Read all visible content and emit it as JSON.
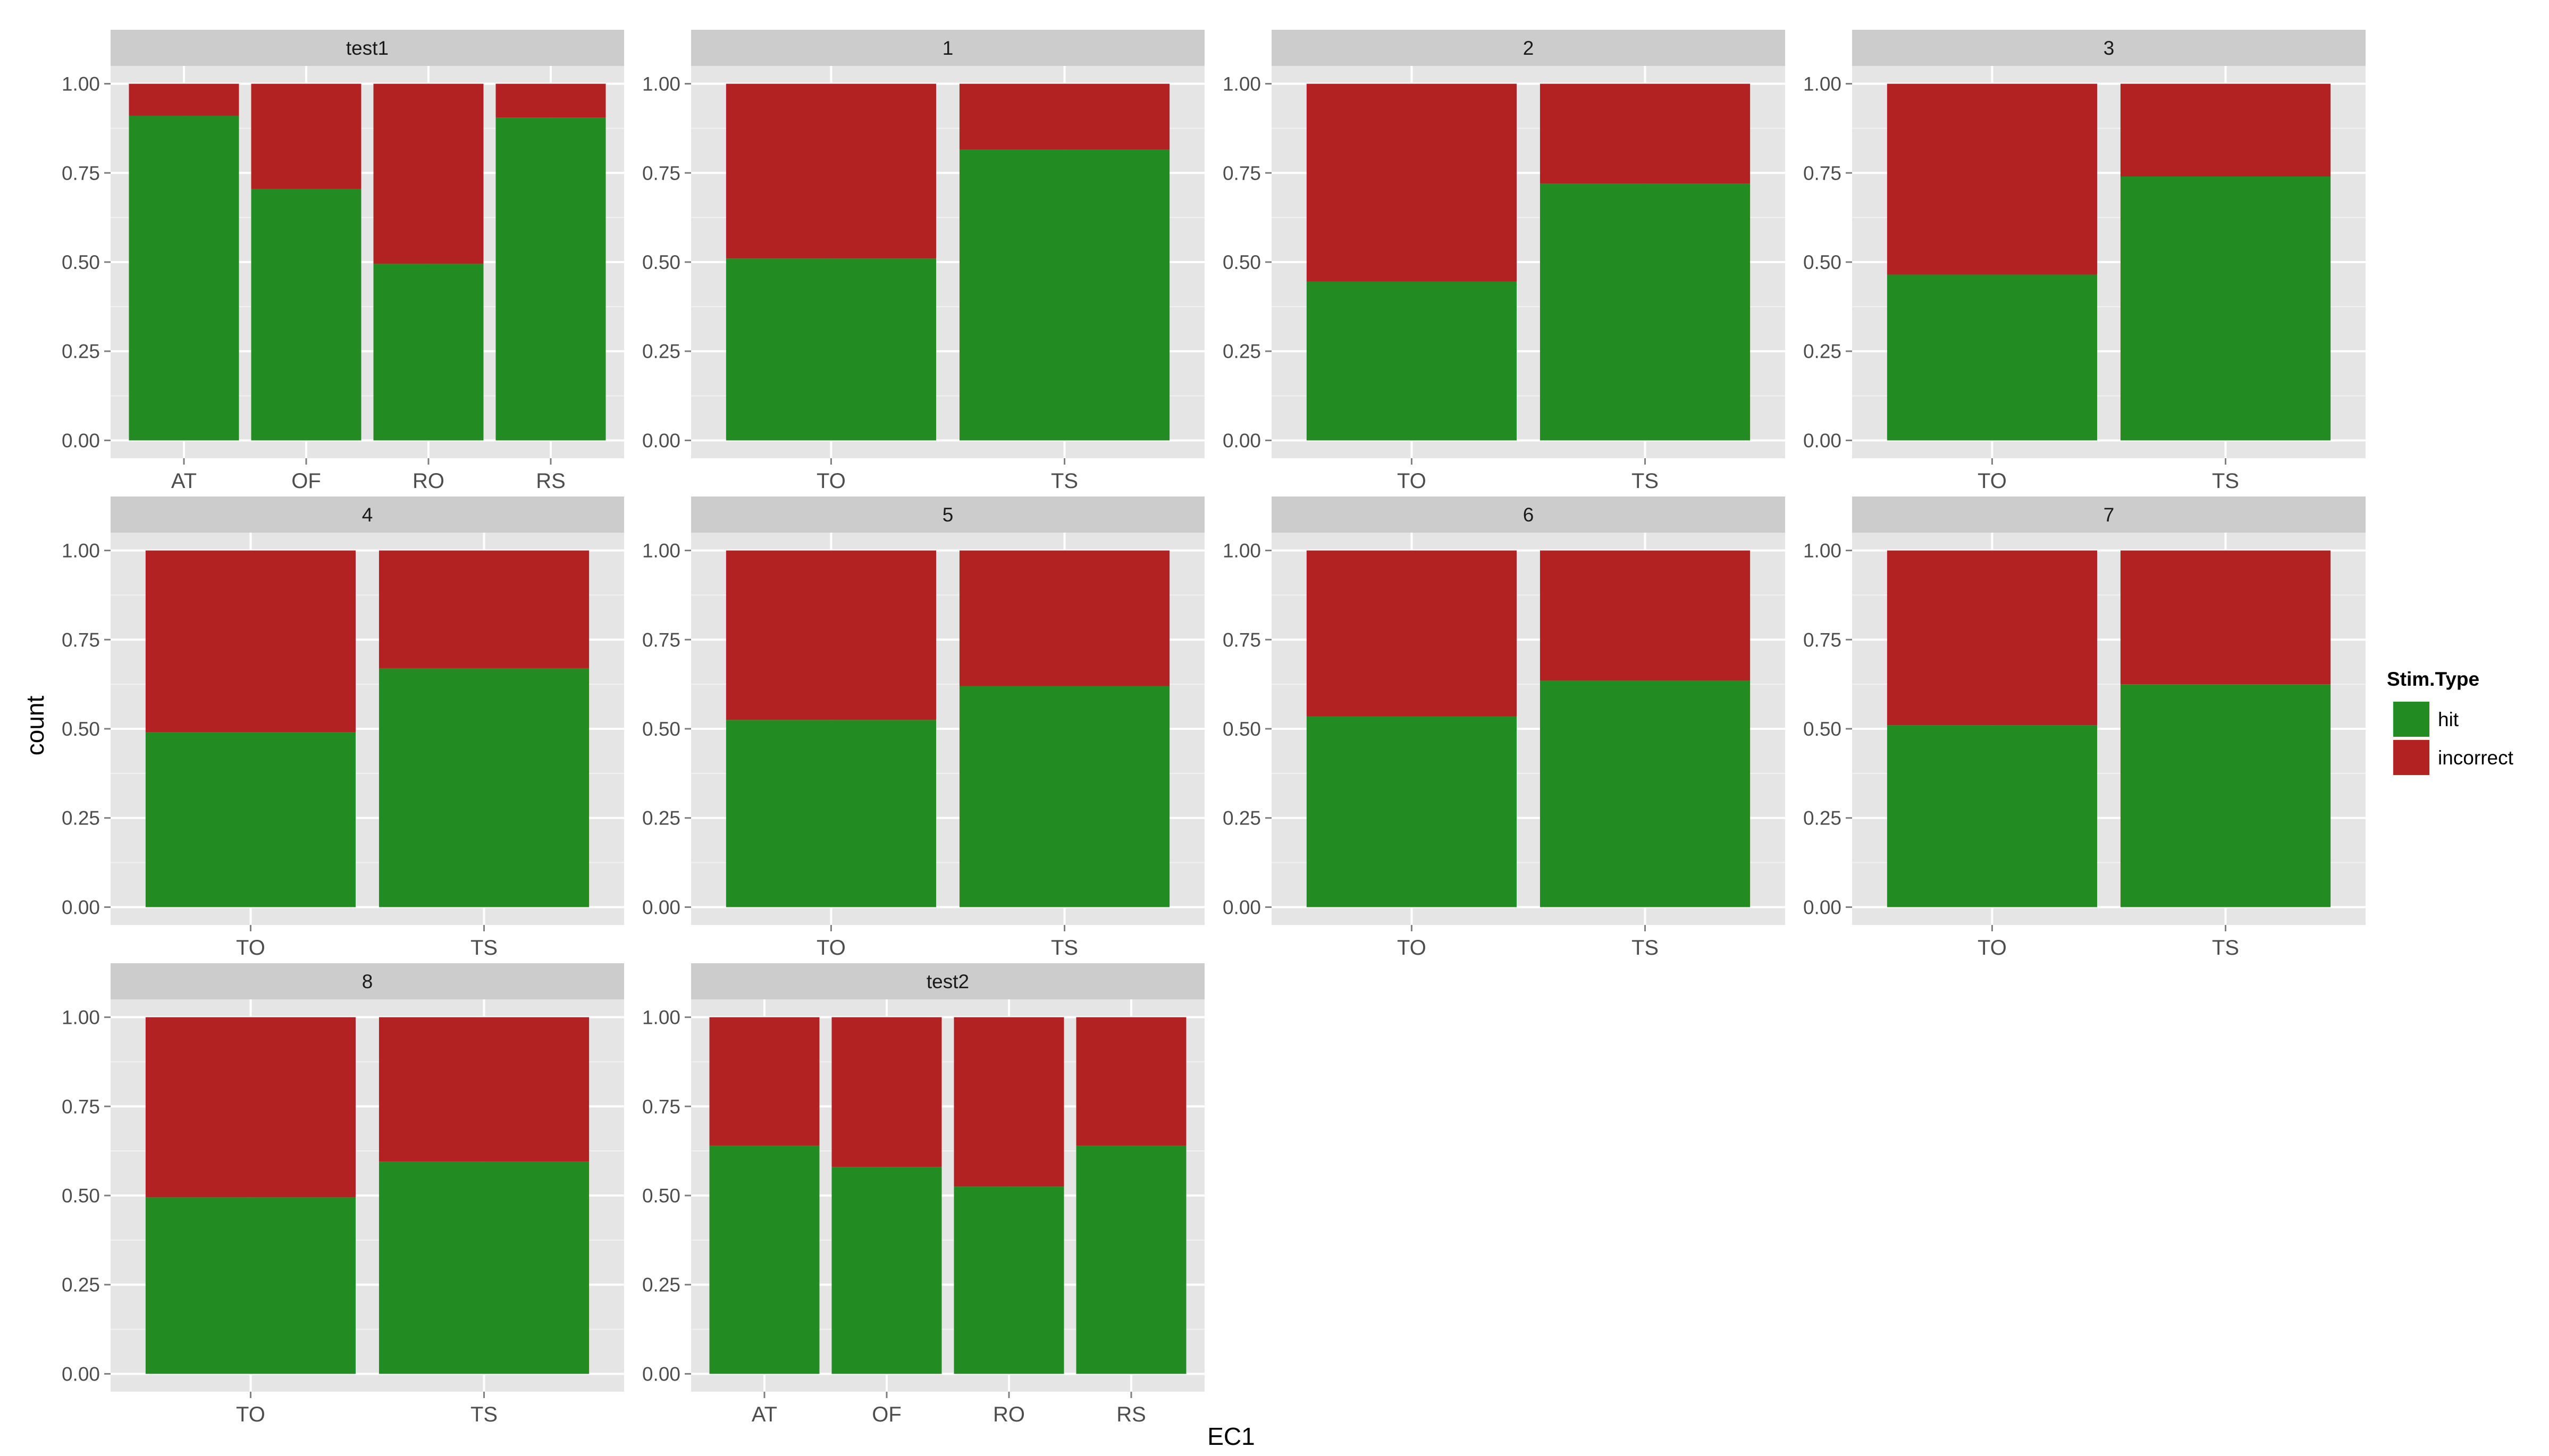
{
  "chart_data": {
    "type": "bar",
    "stacked": true,
    "faceted": true,
    "xlabel": "EC1",
    "ylabel": "count",
    "ylim": [
      0,
      1.05
    ],
    "yticks": [
      "0.00",
      "0.25",
      "0.50",
      "0.75",
      "1.00"
    ],
    "legend": {
      "title": "Stim.Type",
      "position": "right",
      "items": [
        {
          "label": "hit",
          "color": "#228B22"
        },
        {
          "label": "incorrect",
          "color": "#B22222"
        }
      ]
    },
    "grid": true,
    "panels": [
      {
        "strip": "test1",
        "categories": [
          "AT",
          "OF",
          "RO",
          "RS"
        ],
        "series": [
          {
            "name": "hit",
            "values": [
              0.91,
              0.705,
              0.495,
              0.905
            ]
          },
          {
            "name": "incorrect",
            "values": [
              0.09,
              0.295,
              0.505,
              0.095
            ]
          }
        ]
      },
      {
        "strip": "1",
        "categories": [
          "TO",
          "TS"
        ],
        "series": [
          {
            "name": "hit",
            "values": [
              0.51,
              0.815
            ]
          },
          {
            "name": "incorrect",
            "values": [
              0.49,
              0.185
            ]
          }
        ]
      },
      {
        "strip": "2",
        "categories": [
          "TO",
          "TS"
        ],
        "series": [
          {
            "name": "hit",
            "values": [
              0.445,
              0.72
            ]
          },
          {
            "name": "incorrect",
            "values": [
              0.555,
              0.28
            ]
          }
        ]
      },
      {
        "strip": "3",
        "categories": [
          "TO",
          "TS"
        ],
        "series": [
          {
            "name": "hit",
            "values": [
              0.465,
              0.74
            ]
          },
          {
            "name": "incorrect",
            "values": [
              0.535,
              0.26
            ]
          }
        ]
      },
      {
        "strip": "4",
        "categories": [
          "TO",
          "TS"
        ],
        "series": [
          {
            "name": "hit",
            "values": [
              0.49,
              0.67
            ]
          },
          {
            "name": "incorrect",
            "values": [
              0.51,
              0.33
            ]
          }
        ]
      },
      {
        "strip": "5",
        "categories": [
          "TO",
          "TS"
        ],
        "series": [
          {
            "name": "hit",
            "values": [
              0.525,
              0.62
            ]
          },
          {
            "name": "incorrect",
            "values": [
              0.475,
              0.38
            ]
          }
        ]
      },
      {
        "strip": "6",
        "categories": [
          "TO",
          "TS"
        ],
        "series": [
          {
            "name": "hit",
            "values": [
              0.535,
              0.635
            ]
          },
          {
            "name": "incorrect",
            "values": [
              0.465,
              0.365
            ]
          }
        ]
      },
      {
        "strip": "7",
        "categories": [
          "TO",
          "TS"
        ],
        "series": [
          {
            "name": "hit",
            "values": [
              0.51,
              0.625
            ]
          },
          {
            "name": "incorrect",
            "values": [
              0.49,
              0.375
            ]
          }
        ]
      },
      {
        "strip": "8",
        "categories": [
          "TO",
          "TS"
        ],
        "series": [
          {
            "name": "hit",
            "values": [
              0.495,
              0.595
            ]
          },
          {
            "name": "incorrect",
            "values": [
              0.505,
              0.405
            ]
          }
        ]
      },
      {
        "strip": "test2",
        "categories": [
          "AT",
          "OF",
          "RO",
          "RS"
        ],
        "series": [
          {
            "name": "hit",
            "values": [
              0.64,
              0.58,
              0.525,
              0.64
            ]
          },
          {
            "name": "incorrect",
            "values": [
              0.36,
              0.42,
              0.475,
              0.36
            ]
          }
        ]
      }
    ]
  }
}
